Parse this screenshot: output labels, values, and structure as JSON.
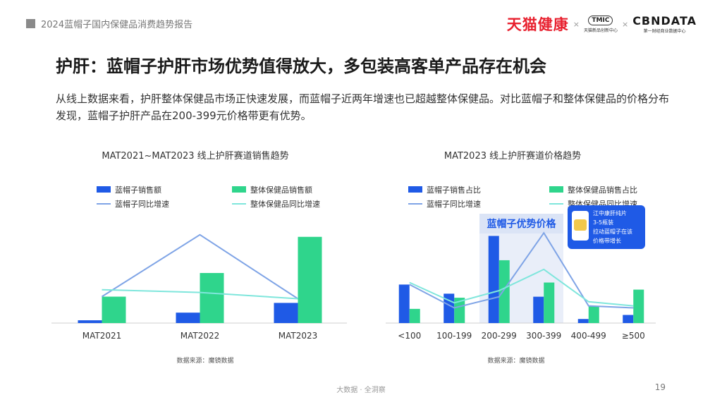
{
  "header": {
    "report_title": "2024蓝帽子国内保健品消费趋势报告",
    "logo_tmall": "天猫健康",
    "logo_tmic": "TMIC",
    "logo_tmic_sub": "天猫新品创新中心",
    "logo_cbn": "CBNDATA",
    "logo_cbn_sub": "第一财经商业数据中心",
    "separator": "×"
  },
  "page_title": "护肝：蓝帽子护肝市场优势值得放大，多包装高客单产品存在机会",
  "description": "从线上数据来看，护肝整体保健品市场正快速发展，而蓝帽子近两年增速也已超越整体保健品。对比蓝帽子和整体保健品的价格分布发现，蓝帽子护肝产品在200-399元价格带更有优势。",
  "chart_data": [
    {
      "type": "bar",
      "title": "MAT2021~MAT2023 线上护肝赛道销售趋势",
      "categories": [
        "MAT2021",
        "MAT2022",
        "MAT2023"
      ],
      "series": [
        {
          "name": "蓝帽子销售额",
          "kind": "bar",
          "color": "#1f5ae6",
          "values": [
            0.04,
            0.15,
            0.29
          ]
        },
        {
          "name": "整体保健品销售额",
          "kind": "bar",
          "color": "#2fd58c",
          "values": [
            0.38,
            0.72,
            1.24
          ]
        },
        {
          "name": "蓝帽子同比增速",
          "kind": "line",
          "color": "#7fa4e6",
          "values": [
            0.38,
            1.27,
            0.35
          ]
        },
        {
          "name": "整体保健品同比增速",
          "kind": "line",
          "color": "#7fe6dc",
          "values": [
            0.48,
            0.44,
            0.35
          ]
        }
      ],
      "ylim": [
        0,
        1.4
      ],
      "legend": "top",
      "source": "数据来源：魔镜数据"
    },
    {
      "type": "bar",
      "title": "MAT2023 线上护肝赛道价格趋势",
      "categories": [
        "<100",
        "100-199",
        "200-299",
        "300-399",
        "400-499",
        "≥500"
      ],
      "series": [
        {
          "name": "蓝帽子销售占比",
          "kind": "bar",
          "color": "#1f5ae6",
          "values": [
            0.38,
            0.29,
            0.86,
            0.26,
            0.04,
            0.08
          ]
        },
        {
          "name": "整体保健品销售占比",
          "kind": "bar",
          "color": "#2fd58c",
          "values": [
            0.14,
            0.25,
            0.62,
            0.4,
            0.17,
            0.33
          ]
        },
        {
          "name": "蓝帽子同比增速",
          "kind": "line",
          "color": "#7fa4e6",
          "values": [
            0.38,
            0.15,
            0.26,
            0.89,
            0.17,
            0.15
          ]
        },
        {
          "name": "整体保健品同比增速",
          "kind": "line",
          "color": "#7fe6dc",
          "values": [
            0.4,
            0.2,
            0.32,
            0.53,
            0.21,
            0.17
          ]
        }
      ],
      "ylim": [
        0,
        1.1
      ],
      "legend": "top",
      "highlight": {
        "label": "蓝帽子优势价格",
        "categories": [
          "200-299",
          "300-399"
        ]
      },
      "annotation": {
        "lines": [
          "江中康肝纯片",
          "3-5瓶装",
          "拉动蓝帽子在该",
          "价格带增长"
        ]
      },
      "source": "数据来源：魔镜数据"
    }
  ],
  "footer": {
    "center": "大数据 · 全洞察",
    "page_number": "19"
  }
}
